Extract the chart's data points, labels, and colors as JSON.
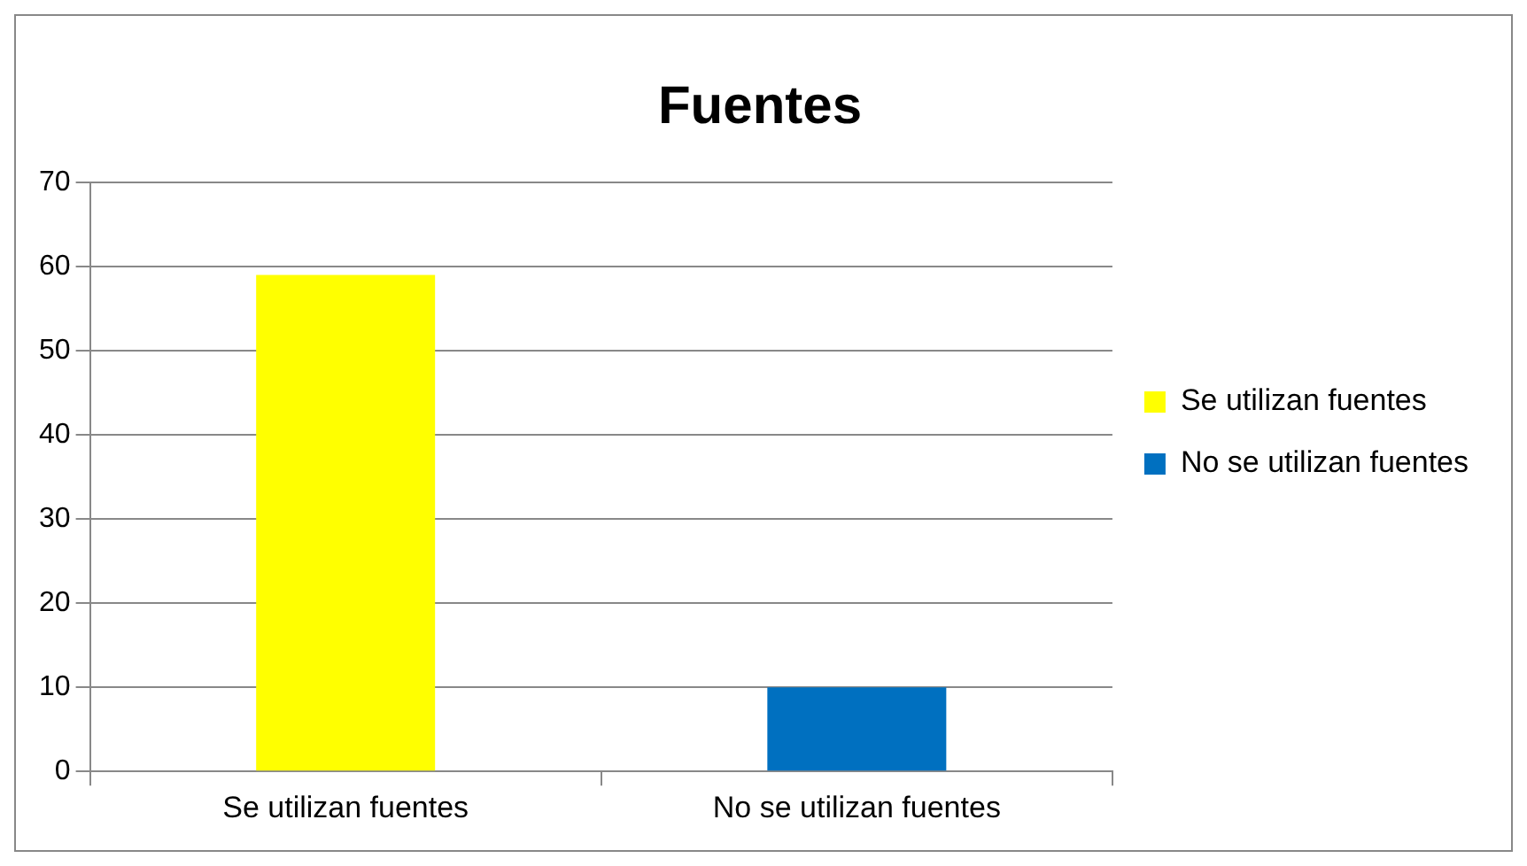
{
  "chart_data": {
    "type": "bar",
    "title": "Fuentes",
    "categories": [
      "Se utilizan fuentes",
      "No se utilizan fuentes"
    ],
    "series": [
      {
        "name": "Se utilizan fuentes",
        "color": "#ffff00",
        "values": [
          59,
          null
        ]
      },
      {
        "name": "No se utilizan fuentes",
        "color": "#0070c0",
        "values": [
          null,
          10
        ]
      }
    ],
    "ylim": [
      0,
      70
    ],
    "yticks": [
      0,
      10,
      20,
      30,
      40,
      50,
      60,
      70
    ],
    "grid": "y",
    "legend": "right"
  }
}
